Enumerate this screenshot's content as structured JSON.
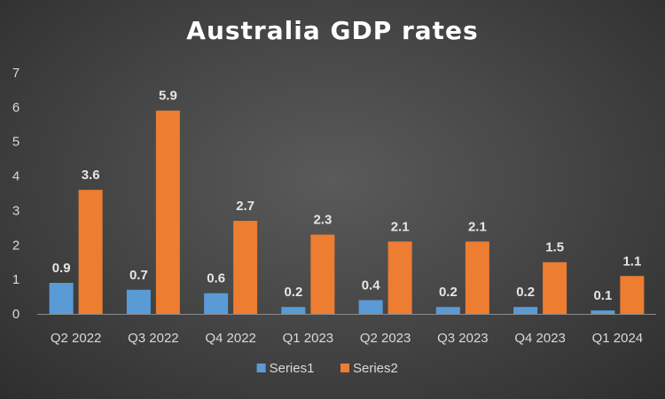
{
  "chart_data": {
    "type": "bar",
    "title": "Australia GDP rates",
    "xlabel": "",
    "ylabel": "",
    "categories": [
      "Q2 2022",
      "Q3 2022",
      "Q4 2022",
      "Q1 2023",
      "Q2 2023",
      "Q3 2023",
      "Q4 2023",
      "Q1 2024"
    ],
    "series": [
      {
        "name": "Series1",
        "color": "#5b9bd5",
        "values": [
          0.9,
          0.7,
          0.6,
          0.2,
          0.4,
          0.2,
          0.2,
          0.1
        ]
      },
      {
        "name": "Series2",
        "color": "#ed7d31",
        "values": [
          3.6,
          5.9,
          2.7,
          2.3,
          2.1,
          2.1,
          1.5,
          1.1
        ]
      }
    ],
    "yticks": [
      "0",
      "1",
      "2",
      "3",
      "4",
      "5",
      "6",
      "7"
    ],
    "ylim": [
      0,
      7
    ],
    "grid": false,
    "legend": "bottom",
    "data_labels": true
  }
}
